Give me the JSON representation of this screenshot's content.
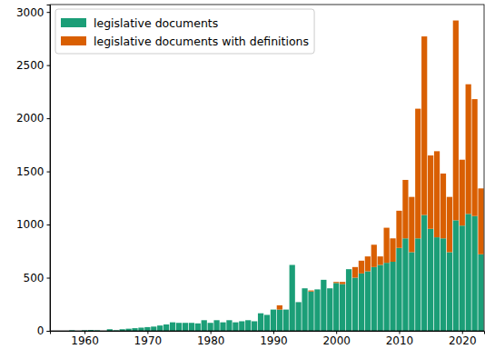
{
  "chart_data": {
    "type": "bar",
    "stacked": true,
    "legend": "upper left",
    "x": [
      1958,
      1959,
      1960,
      1961,
      1962,
      1963,
      1964,
      1965,
      1966,
      1967,
      1968,
      1969,
      1970,
      1971,
      1972,
      1973,
      1974,
      1975,
      1976,
      1977,
      1978,
      1979,
      1980,
      1981,
      1982,
      1983,
      1984,
      1985,
      1986,
      1987,
      1988,
      1989,
      1990,
      1991,
      1992,
      1993,
      1994,
      1995,
      1996,
      1997,
      1998,
      1999,
      2000,
      2001,
      2002,
      2003,
      2004,
      2005,
      2006,
      2007,
      2008,
      2009,
      2010,
      2011,
      2012,
      2013,
      2014,
      2015,
      2016,
      2017,
      2018,
      2019,
      2020,
      2021,
      2022,
      2023
    ],
    "series": [
      {
        "name": "legislative documents",
        "color": "#1b9e77",
        "values": [
          5,
          0,
          5,
          8,
          5,
          0,
          15,
          5,
          15,
          20,
          25,
          30,
          35,
          40,
          50,
          60,
          80,
          75,
          75,
          75,
          70,
          100,
          75,
          100,
          80,
          100,
          80,
          90,
          100,
          90,
          165,
          150,
          200,
          200,
          200,
          620,
          270,
          400,
          370,
          390,
          480,
          400,
          450,
          440,
          580,
          500,
          540,
          560,
          600,
          620,
          640,
          650,
          780,
          870,
          740,
          870,
          1090,
          960,
          880,
          870,
          740,
          1040,
          990,
          1100,
          1080,
          720
        ]
      },
      {
        "name": "legislative documents with definitions",
        "color": "#d95f02",
        "values": [
          0,
          0,
          0,
          0,
          0,
          0,
          0,
          0,
          0,
          0,
          0,
          0,
          0,
          0,
          0,
          0,
          0,
          0,
          0,
          0,
          0,
          0,
          0,
          0,
          0,
          0,
          0,
          0,
          0,
          0,
          0,
          0,
          0,
          40,
          0,
          0,
          0,
          0,
          10,
          0,
          0,
          0,
          10,
          20,
          0,
          100,
          120,
          140,
          210,
          80,
          330,
          220,
          350,
          550,
          520,
          1220,
          1680,
          690,
          810,
          610,
          520,
          1880,
          620,
          1220,
          1100,
          620
        ]
      }
    ],
    "xlim": [
      1954.5,
      2023.5
    ],
    "xticks": [
      1960,
      1970,
      1980,
      1990,
      2000,
      2010,
      2020
    ],
    "ylim": [
      0,
      3070
    ],
    "yticks": [
      0,
      500,
      1000,
      1500,
      2000,
      2500,
      3000
    ]
  }
}
